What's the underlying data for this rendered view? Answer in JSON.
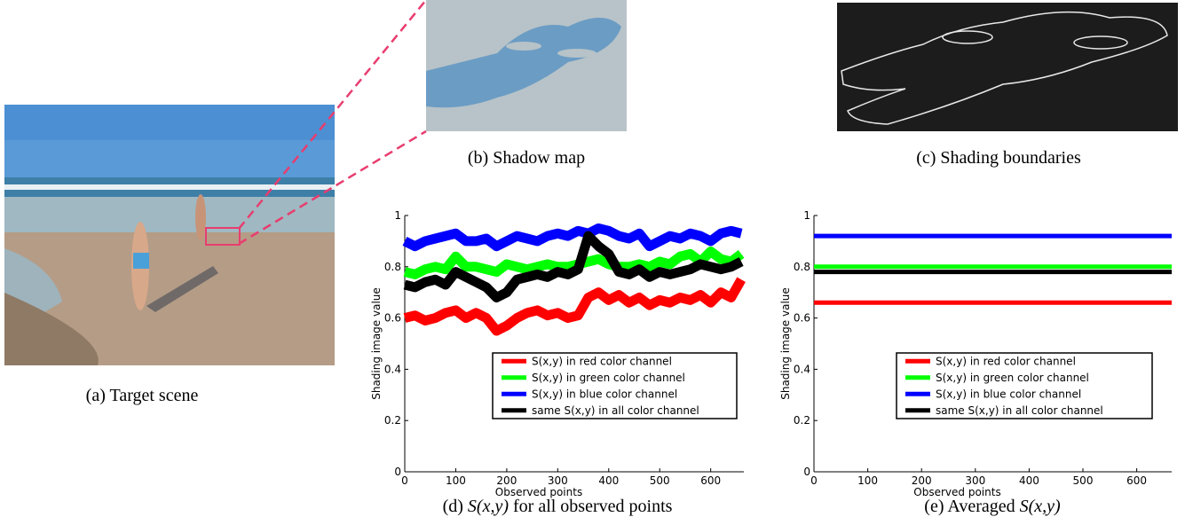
{
  "panels": {
    "a": {
      "caption": "(a) Target scene"
    },
    "b": {
      "caption": "(b) Shadow map"
    },
    "c": {
      "caption": "(c) Shading boundaries"
    },
    "d": {
      "caption_prefix": "(d)",
      "caption_italic": "S(x,y)",
      "caption_suffix": "for all observed points"
    },
    "e": {
      "caption_prefix": "(e) Averaged",
      "caption_italic": "S(x,y)"
    }
  },
  "chart_data": [
    {
      "type": "line",
      "xlabel": "Observed points",
      "ylabel": "Shading image value",
      "xlim": [
        0,
        665
      ],
      "xticks": [
        0,
        100,
        200,
        300,
        400,
        500,
        600
      ],
      "ylim": [
        0,
        1
      ],
      "yticks": [
        0,
        0.2,
        0.4,
        0.6,
        0.8,
        1
      ],
      "x": [
        0,
        20,
        40,
        60,
        80,
        100,
        120,
        140,
        160,
        180,
        200,
        220,
        240,
        260,
        280,
        300,
        320,
        340,
        360,
        380,
        400,
        420,
        440,
        460,
        480,
        500,
        520,
        540,
        560,
        580,
        600,
        620,
        640,
        660
      ],
      "series": [
        {
          "name": "S(x,y) in red color channel",
          "color": "#ff0000",
          "values": [
            0.6,
            0.61,
            0.59,
            0.6,
            0.62,
            0.63,
            0.6,
            0.62,
            0.6,
            0.55,
            0.57,
            0.6,
            0.62,
            0.63,
            0.61,
            0.62,
            0.6,
            0.61,
            0.68,
            0.7,
            0.67,
            0.69,
            0.66,
            0.68,
            0.65,
            0.67,
            0.66,
            0.68,
            0.67,
            0.69,
            0.66,
            0.7,
            0.68,
            0.75
          ]
        },
        {
          "name": "S(x,y) in green color channel",
          "color": "#00ff00",
          "values": [
            0.78,
            0.77,
            0.79,
            0.8,
            0.79,
            0.84,
            0.8,
            0.8,
            0.79,
            0.78,
            0.81,
            0.8,
            0.79,
            0.8,
            0.81,
            0.8,
            0.8,
            0.81,
            0.82,
            0.83,
            0.81,
            0.8,
            0.8,
            0.81,
            0.8,
            0.82,
            0.81,
            0.84,
            0.85,
            0.82,
            0.86,
            0.83,
            0.82,
            0.85
          ]
        },
        {
          "name": "S(x,y) in blue color channel",
          "color": "#0000ff",
          "values": [
            0.9,
            0.88,
            0.9,
            0.91,
            0.92,
            0.93,
            0.9,
            0.9,
            0.91,
            0.88,
            0.9,
            0.92,
            0.91,
            0.9,
            0.92,
            0.93,
            0.92,
            0.94,
            0.93,
            0.95,
            0.94,
            0.92,
            0.91,
            0.93,
            0.88,
            0.9,
            0.92,
            0.91,
            0.93,
            0.92,
            0.9,
            0.93,
            0.94,
            0.93
          ]
        },
        {
          "name": "same S(x,y) in all color channel",
          "color": "#000000",
          "values": [
            0.73,
            0.72,
            0.74,
            0.75,
            0.73,
            0.78,
            0.76,
            0.74,
            0.72,
            0.68,
            0.7,
            0.75,
            0.76,
            0.77,
            0.76,
            0.78,
            0.77,
            0.79,
            0.92,
            0.88,
            0.85,
            0.78,
            0.77,
            0.79,
            0.76,
            0.78,
            0.77,
            0.78,
            0.79,
            0.81,
            0.8,
            0.79,
            0.8,
            0.82
          ]
        }
      ]
    },
    {
      "type": "line",
      "xlabel": "Observed points",
      "ylabel": "Shading image value",
      "xlim": [
        0,
        665
      ],
      "xticks": [
        0,
        100,
        200,
        300,
        400,
        500,
        600
      ],
      "ylim": [
        0,
        1
      ],
      "yticks": [
        0,
        0.2,
        0.4,
        0.6,
        0.8,
        1
      ],
      "x": [
        0,
        665
      ],
      "series": [
        {
          "name": "S(x,y) in red color channel",
          "color": "#ff0000",
          "values": [
            0.66,
            0.66
          ]
        },
        {
          "name": "S(x,y) in green color channel",
          "color": "#00ff00",
          "values": [
            0.8,
            0.8
          ]
        },
        {
          "name": "S(x,y) in blue color channel",
          "color": "#0000ff",
          "values": [
            0.92,
            0.92
          ]
        },
        {
          "name": "same S(x,y) in all color channel",
          "color": "#000000",
          "values": [
            0.78,
            0.78
          ]
        }
      ]
    }
  ]
}
